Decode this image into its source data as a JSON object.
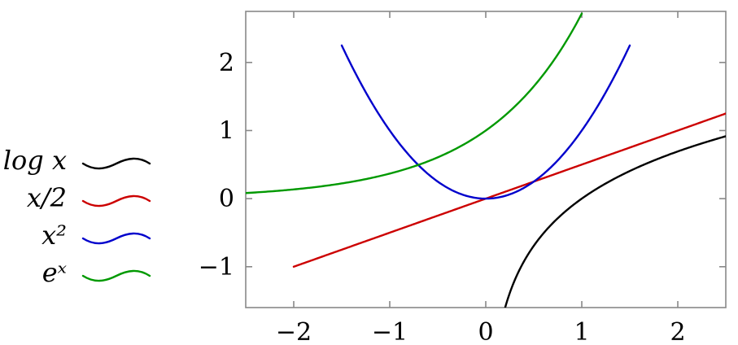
{
  "chart_data": {
    "type": "line",
    "title": "",
    "xlabel": "",
    "ylabel": "",
    "xlim": [
      -2.5,
      2.5
    ],
    "ylim": [
      -1.6,
      2.75
    ],
    "grid": false,
    "legend_position": "left",
    "xticks": [
      -2,
      -1,
      0,
      1,
      2
    ],
    "yticks": [
      -1,
      0,
      1,
      2
    ],
    "xtick_labels": [
      "−2",
      "−1",
      "0",
      "1",
      "2"
    ],
    "ytick_labels": [
      "−1",
      "0",
      "1",
      "2"
    ],
    "series": [
      {
        "name": "log x",
        "color": "#000000",
        "function": "log",
        "domain": [
          0.2,
          2.5
        ]
      },
      {
        "name": "x/2",
        "color": "#cc0000",
        "function": "half",
        "domain": [
          -2,
          2.5
        ]
      },
      {
        "name": "x²",
        "color": "#0000cc",
        "function": "square",
        "domain": [
          -1.5,
          1.5
        ]
      },
      {
        "name": "eˣ",
        "color": "#009900",
        "function": "exp",
        "domain": [
          -2.5,
          1.0
        ]
      }
    ]
  }
}
